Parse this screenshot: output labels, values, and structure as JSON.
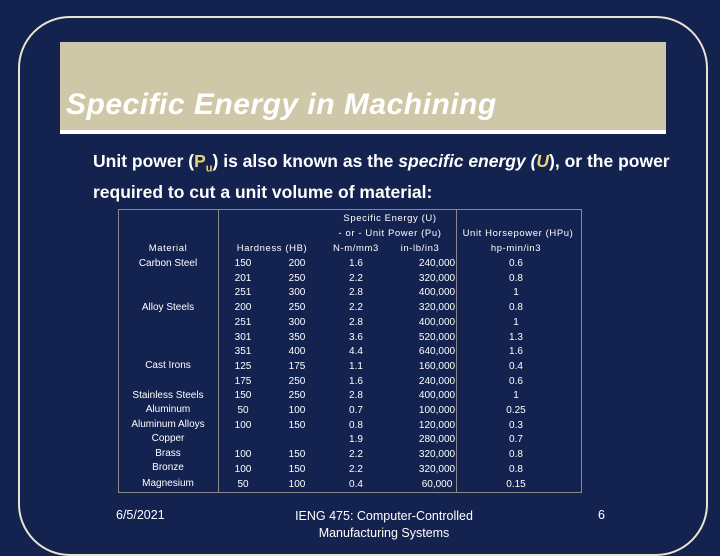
{
  "title": "Specific Energy in Machining",
  "intro": {
    "part1": "Unit power (",
    "symbol": "P",
    "symbol_sub": "u",
    "part2": ") is also known as the ",
    "specific_energy": "specific energy",
    "part3": " (",
    "u_symbol": "U",
    "part4": "), or the power required to cut a unit volume of material:"
  },
  "table": {
    "header": {
      "material": "Material",
      "hardness": "Hardness (HB)",
      "specific_energy": "Specific Energy (U)",
      "or_unit_power": "- or - Unit Power (Pu)",
      "unit_hp": "Unit Horsepower (HPu)",
      "nm_unit": "N-m/mm3",
      "inlb_unit": "in-lb/in3",
      "hp_unit": "hp-min/in3"
    },
    "materials": [
      "Carbon Steel",
      "Alloy Steels",
      "Cast Irons",
      "Stainless Steels",
      "Aluminum",
      "Aluminum Alloys",
      "Copper",
      "Brass",
      "Bronze",
      "Magnesium"
    ],
    "rows": [
      [
        "150",
        "200",
        "1.6",
        "240,000",
        "0.6"
      ],
      [
        "201",
        "250",
        "2.2",
        "320,000",
        "0.8"
      ],
      [
        "251",
        "300",
        "2.8",
        "400,000",
        "1"
      ],
      [
        "200",
        "250",
        "2.2",
        "320,000",
        "0.8"
      ],
      [
        "251",
        "300",
        "2.8",
        "400,000",
        "1"
      ],
      [
        "301",
        "350",
        "3.6",
        "520,000",
        "1.3"
      ],
      [
        "351",
        "400",
        "4.4",
        "640,000",
        "1.6"
      ],
      [
        "125",
        "175",
        "1.1",
        "160,000",
        "0.4"
      ],
      [
        "175",
        "250",
        "1.6",
        "240,000",
        "0.6"
      ],
      [
        "150",
        "250",
        "2.8",
        "400,000",
        "1"
      ],
      [
        "50",
        "100",
        "0.7",
        "100,000",
        "0.25"
      ],
      [
        "100",
        "150",
        "0.8",
        "120,000",
        "0.3"
      ],
      [
        "",
        "",
        "1.9",
        "280,000",
        "0.7"
      ],
      [
        "100",
        "150",
        "2.2",
        "320,000",
        "0.8"
      ],
      [
        "100",
        "150",
        "2.2",
        "320,000",
        "0.8"
      ],
      [
        "50",
        "100",
        "0.4",
        "60,000",
        "0.15"
      ]
    ]
  },
  "footer": {
    "date": "6/5/2021",
    "course_line1": "IENG 475: Computer-Controlled",
    "course_line2": "Manufacturing Systems",
    "page": "6"
  }
}
